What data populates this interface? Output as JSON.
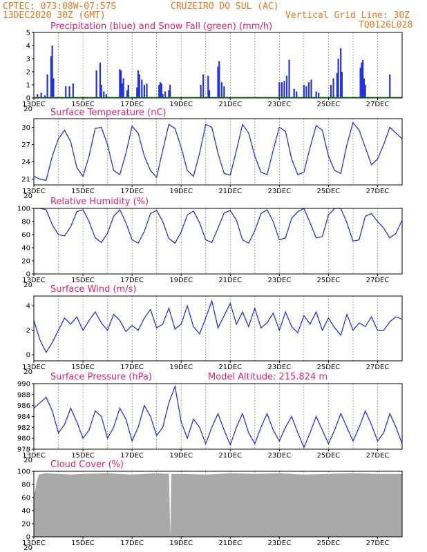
{
  "header": {
    "line1_left": "CPTEC:   073:08W-07:57S",
    "line1_right": "CRUZEIRO DO SUL (AC)",
    "line2_left": "13DEC2020 30Z (GMT)",
    "line2_right": "Vertical Grid Line: 30Z",
    "line3_right": "TQ0126L028"
  },
  "colors": {
    "precip": "#2233dd",
    "snow": "#22aa22",
    "line": "#2233dd",
    "arrow": "#000000",
    "cloud": "#a9a9a9",
    "title": "#e0206e",
    "header": "#e8761e"
  },
  "x_axis": {
    "start": "13DEC",
    "end": "28DEC",
    "tick_labels": [
      "13DEC",
      "15DEC",
      "17DEC",
      "19DEC",
      "21DEC",
      "23DEC",
      "25DEC",
      "27DEC"
    ],
    "tick_days": [
      0,
      2,
      4,
      6,
      8,
      10,
      12,
      14
    ],
    "grid_days": [
      1,
      2,
      3,
      4,
      5,
      6,
      7,
      8,
      9,
      10,
      11,
      12,
      13,
      14
    ],
    "days_span": 15.0,
    "stub_label": "20"
  },
  "chart_data": [
    {
      "type": "bar",
      "title": "Precipitation (blue) and Snow Fall (green) (mm/h)",
      "ylim": [
        0,
        5
      ],
      "yticks": [
        0,
        1,
        2,
        3,
        4,
        5
      ],
      "series": [
        {
          "name": "Precipitation",
          "x": [
            0.15,
            0.3,
            0.45,
            0.55,
            0.7,
            0.75,
            0.8,
            1.3,
            1.45,
            1.6,
            2.55,
            2.7,
            2.75,
            2.85,
            2.95,
            3.5,
            3.55,
            3.6,
            3.65,
            3.8,
            3.85,
            4.2,
            4.25,
            4.3,
            4.4,
            4.5,
            4.6,
            5.1,
            5.15,
            5.2,
            5.25,
            5.35,
            5.5,
            5.55,
            6.8,
            6.9,
            7.1,
            7.15,
            7.5,
            7.55,
            7.65,
            7.75,
            10.0,
            10.1,
            10.2,
            10.3,
            10.4,
            10.6,
            10.7,
            11.0,
            11.1,
            11.2,
            11.3,
            11.5,
            11.6,
            12.1,
            12.2,
            12.35,
            12.4,
            12.5,
            12.55,
            13.3,
            13.35,
            13.4,
            13.45,
            13.5,
            14.5
          ],
          "values": [
            0.3,
            0.4,
            0.2,
            1.8,
            3.2,
            4.0,
            1.5,
            0.9,
            0.9,
            1.1,
            2.1,
            2.7,
            1.0,
            0.5,
            0.3,
            2.2,
            2.1,
            1.1,
            1.5,
            0.6,
            1.0,
            0.8,
            2.1,
            1.8,
            1.4,
            1.0,
            1.1,
            1.0,
            1.2,
            1.1,
            0.3,
            0.5,
            0.6,
            1.0,
            1.0,
            1.8,
            1.7,
            0.6,
            2.4,
            2.8,
            1.2,
            0.9,
            1.2,
            1.2,
            1.3,
            1.7,
            2.9,
            0.7,
            0.5,
            1.0,
            0.9,
            1.2,
            1.4,
            0.5,
            0.4,
            1.0,
            1.5,
            1.9,
            3.0,
            3.8,
            2.0,
            2.3,
            2.7,
            2.9,
            1.5,
            1.0,
            1.8
          ]
        },
        {
          "name": "Snow Fall",
          "x": [
            0,
            15
          ],
          "values": [
            0,
            0
          ]
        }
      ]
    },
    {
      "type": "line",
      "title": "Surface Temperature (nC)",
      "ylim": [
        20,
        31.5
      ],
      "yticks": [
        21,
        24,
        27,
        30
      ],
      "x": [
        0,
        0.25,
        0.5,
        0.75,
        1.0,
        1.25,
        1.5,
        1.75,
        2.0,
        2.25,
        2.5,
        2.75,
        3.0,
        3.25,
        3.5,
        3.75,
        4.0,
        4.25,
        4.5,
        4.75,
        5.0,
        5.25,
        5.5,
        5.75,
        6.0,
        6.25,
        6.5,
        6.75,
        7.0,
        7.25,
        7.5,
        7.75,
        8.0,
        8.25,
        8.5,
        8.75,
        9.0,
        9.25,
        9.5,
        9.75,
        10.0,
        10.25,
        10.5,
        10.75,
        11.0,
        11.25,
        11.5,
        11.75,
        12.0,
        12.25,
        12.5,
        12.75,
        13.0,
        13.25,
        13.5,
        13.75,
        14.0,
        14.25,
        14.5,
        14.75,
        15.0
      ],
      "values": [
        21.5,
        21.0,
        20.8,
        25.0,
        28.0,
        29.5,
        27.5,
        23.0,
        21.5,
        25.0,
        29.8,
        30.0,
        27.0,
        22.5,
        21.8,
        25.5,
        30.2,
        29.0,
        25.0,
        22.5,
        21.3,
        26.0,
        30.5,
        29.8,
        26.5,
        22.5,
        21.5,
        25.5,
        30.5,
        30.0,
        25.5,
        22.0,
        21.7,
        26.0,
        30.5,
        29.0,
        25.0,
        22.2,
        21.8,
        26.0,
        30.0,
        29.3,
        24.5,
        21.8,
        22.2,
        26.5,
        30.3,
        29.5,
        25.0,
        22.5,
        22.0,
        27.0,
        30.8,
        29.5,
        26.5,
        23.5,
        24.5,
        27.0,
        30.0,
        29.0,
        28.0
      ]
    },
    {
      "type": "line",
      "title": "Relative Humidity (%)",
      "ylim": [
        0,
        100
      ],
      "yticks": [
        0,
        20,
        40,
        60,
        80,
        100
      ],
      "x": [
        0,
        0.25,
        0.5,
        0.75,
        1.0,
        1.25,
        1.5,
        1.75,
        2.0,
        2.25,
        2.5,
        2.75,
        3.0,
        3.25,
        3.5,
        3.75,
        4.0,
        4.25,
        4.5,
        4.75,
        5.0,
        5.25,
        5.5,
        5.75,
        6.0,
        6.25,
        6.5,
        6.75,
        7.0,
        7.25,
        7.5,
        7.75,
        8.0,
        8.25,
        8.5,
        8.75,
        9.0,
        9.25,
        9.5,
        9.75,
        10.0,
        10.25,
        10.5,
        10.75,
        11.0,
        11.25,
        11.5,
        11.75,
        12.0,
        12.25,
        12.5,
        12.75,
        13.0,
        13.25,
        13.5,
        13.75,
        14.0,
        14.25,
        14.5,
        14.75,
        15.0
      ],
      "values": [
        100,
        100,
        98,
        75,
        60,
        58,
        72,
        95,
        98,
        80,
        55,
        48,
        62,
        88,
        98,
        78,
        52,
        47,
        65,
        92,
        97,
        80,
        54,
        47,
        64,
        90,
        96,
        78,
        52,
        48,
        70,
        93,
        97,
        82,
        52,
        47,
        66,
        92,
        98,
        80,
        52,
        55,
        85,
        95,
        100,
        78,
        55,
        57,
        90,
        100,
        100,
        78,
        50,
        52,
        88,
        92,
        80,
        70,
        55,
        62,
        82
      ]
    },
    {
      "type": "line",
      "title": "Surface Wind (m/s)",
      "ylim": [
        -0.5,
        4.8
      ],
      "yticks": [
        0,
        2,
        4
      ],
      "x": [
        0,
        0.25,
        0.5,
        0.75,
        1.0,
        1.25,
        1.5,
        1.75,
        2.0,
        2.25,
        2.5,
        2.75,
        3.0,
        3.25,
        3.5,
        3.75,
        4.0,
        4.25,
        4.5,
        4.75,
        5.0,
        5.25,
        5.5,
        5.75,
        6.0,
        6.25,
        6.5,
        6.75,
        7.0,
        7.25,
        7.5,
        7.75,
        8.0,
        8.25,
        8.5,
        8.75,
        9.0,
        9.25,
        9.5,
        9.75,
        10.0,
        10.25,
        10.5,
        10.75,
        11.0,
        11.25,
        11.5,
        11.75,
        12.0,
        12.25,
        12.5,
        12.75,
        13.0,
        13.25,
        13.5,
        13.75,
        14.0,
        14.25,
        14.5,
        14.75,
        15.0
      ],
      "values": [
        2.8,
        1.2,
        0.2,
        1.0,
        2.0,
        3.0,
        2.5,
        3.1,
        2.0,
        2.8,
        3.5,
        2.6,
        2.0,
        3.3,
        2.8,
        1.9,
        2.4,
        2.0,
        3.0,
        3.7,
        2.2,
        2.5,
        3.8,
        2.1,
        2.5,
        4.0,
        2.3,
        1.7,
        3.0,
        4.4,
        2.2,
        3.2,
        4.2,
        2.5,
        3.5,
        2.3,
        3.8,
        2.2,
        2.6,
        3.4,
        2.0,
        3.5,
        2.3,
        1.8,
        3.2,
        2.5,
        3.5,
        2.0,
        3.0,
        2.2,
        1.6,
        3.3,
        2.0,
        2.6,
        2.3,
        3.1,
        2.0,
        2.0,
        2.7,
        3.1,
        2.9
      ]
    },
    {
      "type": "line",
      "title": "Surface Pressure (hPa)",
      "annotation": "Model Altitude: 215.824  m",
      "ylim": [
        978,
        990
      ],
      "yticks": [
        978,
        980,
        982,
        984,
        986,
        988,
        990
      ],
      "x": [
        0,
        0.25,
        0.5,
        0.75,
        1.0,
        1.25,
        1.5,
        1.75,
        2.0,
        2.25,
        2.5,
        2.75,
        3.0,
        3.25,
        3.5,
        3.75,
        4.0,
        4.25,
        4.5,
        4.75,
        5.0,
        5.25,
        5.5,
        5.75,
        6.0,
        6.25,
        6.5,
        6.75,
        7.0,
        7.25,
        7.5,
        7.75,
        8.0,
        8.25,
        8.5,
        8.75,
        9.0,
        9.25,
        9.5,
        9.75,
        10.0,
        10.25,
        10.5,
        10.75,
        11.0,
        11.25,
        11.5,
        11.75,
        12.0,
        12.25,
        12.5,
        12.75,
        13.0,
        13.25,
        13.5,
        13.75,
        14.0,
        14.25,
        14.5,
        14.75,
        15.0
      ],
      "values": [
        985.5,
        986.5,
        987.5,
        985.0,
        981.0,
        982.5,
        985.5,
        983.0,
        980.0,
        981.5,
        985.0,
        984.0,
        980.0,
        982.0,
        985.5,
        983.5,
        979.5,
        982.0,
        986.0,
        984.0,
        980.5,
        982.0,
        986.5,
        989.5,
        983.0,
        980.0,
        983.5,
        982.0,
        979.0,
        982.0,
        984.5,
        981.5,
        978.8,
        982.0,
        984.5,
        981.0,
        979.0,
        982.0,
        984.5,
        981.5,
        979.5,
        982.0,
        984.0,
        981.0,
        978.3,
        981.0,
        984.0,
        981.5,
        979.0,
        981.5,
        984.5,
        982.0,
        979.5,
        982.0,
        985.0,
        982.5,
        979.5,
        981.0,
        984.5,
        982.0,
        979.0
      ]
    },
    {
      "type": "area",
      "title": "Cloud Cover (%)",
      "ylim": [
        0,
        100
      ],
      "yticks": [
        0,
        20,
        40,
        60,
        80,
        100
      ],
      "x": [
        0,
        0.05,
        0.1,
        0.2,
        0.5,
        1.0,
        1.5,
        2.0,
        3.0,
        4.0,
        5.0,
        5.5,
        5.56,
        5.6,
        6.0,
        7.0,
        8.0,
        9.0,
        10.0,
        11.0,
        12.0,
        13.0,
        14.0,
        15.0
      ],
      "values": [
        65,
        70,
        82,
        95,
        97,
        96,
        95,
        96,
        97,
        95,
        97,
        96,
        0,
        96,
        96,
        95,
        97,
        96,
        97,
        95,
        96,
        97,
        96,
        96
      ]
    }
  ]
}
